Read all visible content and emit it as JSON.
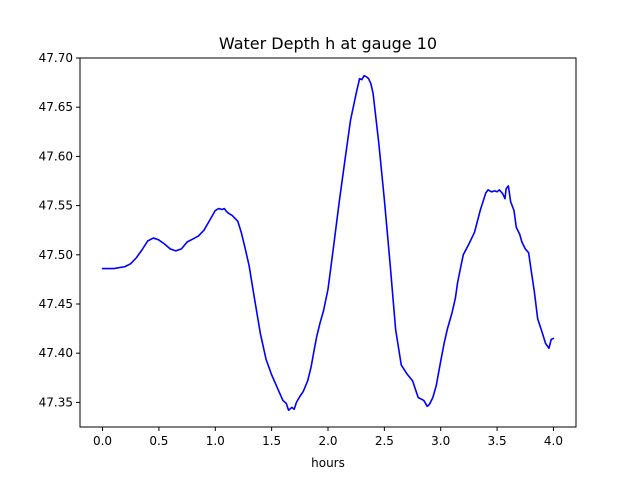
{
  "chart_data": {
    "type": "line",
    "title": "Water Depth h at gauge 10",
    "xlabel": "hours",
    "ylabel": "",
    "xlim": [
      -0.2,
      4.2
    ],
    "ylim": [
      47.325,
      47.7
    ],
    "xticks": [
      0.0,
      0.5,
      1.0,
      1.5,
      2.0,
      2.5,
      3.0,
      3.5,
      4.0
    ],
    "xtick_labels": [
      "0.0",
      "0.5",
      "1.0",
      "1.5",
      "2.0",
      "2.5",
      "3.0",
      "3.5",
      "4.0"
    ],
    "yticks": [
      47.35,
      47.4,
      47.45,
      47.5,
      47.55,
      47.6,
      47.65,
      47.7
    ],
    "ytick_labels": [
      "47.35",
      "47.40",
      "47.45",
      "47.50",
      "47.55",
      "47.60",
      "47.65",
      "47.70"
    ],
    "grid": false,
    "legend": null,
    "series": [
      {
        "color": "#0000ff",
        "x": [
          0.0,
          0.1,
          0.2,
          0.25,
          0.3,
          0.35,
          0.4,
          0.45,
          0.48,
          0.5,
          0.55,
          0.6,
          0.65,
          0.7,
          0.75,
          0.8,
          0.85,
          0.9,
          0.95,
          1.0,
          1.03,
          1.06,
          1.08,
          1.1,
          1.12,
          1.15,
          1.2,
          1.23,
          1.26,
          1.3,
          1.35,
          1.4,
          1.45,
          1.5,
          1.55,
          1.6,
          1.63,
          1.65,
          1.68,
          1.7,
          1.72,
          1.75,
          1.78,
          1.82,
          1.85,
          1.88,
          1.9,
          1.93,
          1.96,
          2.0,
          2.05,
          2.1,
          2.15,
          2.2,
          2.25,
          2.28,
          2.3,
          2.32,
          2.34,
          2.36,
          2.38,
          2.4,
          2.45,
          2.5,
          2.55,
          2.6,
          2.65,
          2.7,
          2.75,
          2.8,
          2.85,
          2.88,
          2.9,
          2.93,
          2.96,
          3.0,
          3.03,
          3.06,
          3.1,
          3.13,
          3.15,
          3.18,
          3.2,
          3.25,
          3.3,
          3.35,
          3.4,
          3.42,
          3.45,
          3.48,
          3.5,
          3.52,
          3.55,
          3.57,
          3.58,
          3.6,
          3.62,
          3.65,
          3.67,
          3.7,
          3.72,
          3.75,
          3.78,
          3.8,
          3.83,
          3.86,
          3.9,
          3.93,
          3.96,
          3.98,
          4.0
        ],
        "y": [
          47.486,
          47.486,
          47.488,
          47.491,
          47.497,
          47.505,
          47.514,
          47.517,
          47.516,
          47.515,
          47.511,
          47.506,
          47.504,
          47.506,
          47.513,
          47.516,
          47.519,
          47.525,
          47.535,
          47.545,
          47.547,
          47.546,
          47.547,
          47.544,
          47.542,
          47.54,
          47.534,
          47.523,
          47.509,
          47.489,
          47.454,
          47.42,
          47.394,
          47.378,
          47.365,
          47.352,
          47.349,
          47.342,
          47.345,
          47.343,
          47.35,
          47.356,
          47.361,
          47.372,
          47.386,
          47.405,
          47.417,
          47.431,
          47.443,
          47.465,
          47.509,
          47.554,
          47.596,
          47.637,
          47.664,
          47.679,
          47.678,
          47.682,
          47.681,
          47.679,
          47.674,
          47.664,
          47.614,
          47.556,
          47.492,
          47.424,
          47.388,
          47.379,
          47.372,
          47.355,
          47.352,
          47.346,
          47.348,
          47.355,
          47.367,
          47.392,
          47.41,
          47.425,
          47.441,
          47.456,
          47.472,
          47.489,
          47.5,
          47.511,
          47.523,
          47.545,
          47.563,
          47.566,
          47.564,
          47.565,
          47.564,
          47.566,
          47.562,
          47.557,
          47.567,
          47.57,
          47.554,
          47.545,
          47.528,
          47.521,
          47.513,
          47.506,
          47.502,
          47.486,
          47.463,
          47.435,
          47.421,
          47.41,
          47.405,
          47.414,
          47.415
        ]
      }
    ]
  }
}
